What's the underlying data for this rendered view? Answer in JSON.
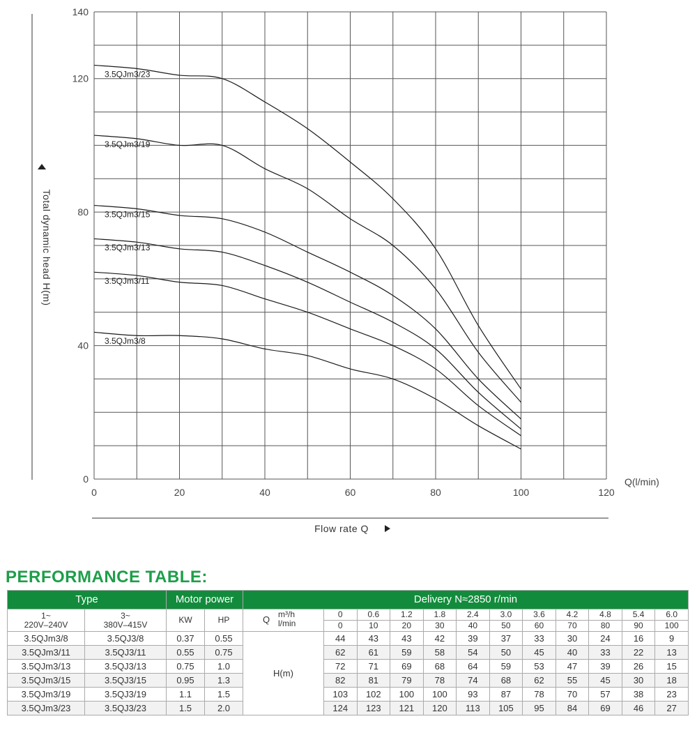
{
  "chart_data": {
    "type": "line",
    "xlabel": "Flow rate Q",
    "x_unit_label": "Q(l/min)",
    "ylabel": "Total dynamic head H(m)",
    "xlim": [
      0,
      120
    ],
    "ylim": [
      0,
      140
    ],
    "x_ticks": [
      0,
      20,
      40,
      60,
      80,
      100,
      120
    ],
    "y_ticks": [
      0,
      40,
      80,
      120,
      140
    ],
    "x_grid_step": 10,
    "y_grid_step": 10,
    "grid": true,
    "x": [
      0,
      10,
      20,
      30,
      40,
      50,
      60,
      70,
      80,
      90,
      100
    ],
    "series": [
      {
        "name": "3.5QJm3/23",
        "values": [
          124,
          123,
          121,
          120,
          113,
          105,
          95,
          84,
          69,
          46,
          27
        ]
      },
      {
        "name": "3.5QJm3/19",
        "values": [
          103,
          102,
          100,
          100,
          93,
          87,
          78,
          70,
          57,
          38,
          23
        ]
      },
      {
        "name": "3.5QJm3/15",
        "values": [
          82,
          81,
          79,
          78,
          74,
          68,
          62,
          55,
          45,
          30,
          18
        ]
      },
      {
        "name": "3.5QJm3/13",
        "values": [
          72,
          71,
          69,
          68,
          64,
          59,
          53,
          47,
          39,
          26,
          15
        ]
      },
      {
        "name": "3.5QJm3/11",
        "values": [
          62,
          61,
          59,
          58,
          54,
          50,
          45,
          40,
          33,
          22,
          13
        ]
      },
      {
        "name": "3.5QJm3/8",
        "values": [
          44,
          43,
          43,
          42,
          39,
          37,
          33,
          30,
          24,
          16,
          9
        ]
      }
    ]
  },
  "table": {
    "title": "PERFORMANCE TABLE:",
    "header": {
      "type": "Type",
      "motor_power": "Motor power",
      "delivery": "Delivery  N≈2850 r/min"
    },
    "subheader": {
      "single_phase": "1~",
      "single_voltage": "220V–240V",
      "three_phase": "3~",
      "three_voltage": "380V–415V",
      "kw": "KW",
      "hp": "HP",
      "q_symbol": "Q",
      "unit_m3h": "m³/h",
      "unit_lmin": "l/min",
      "m3h": [
        "0",
        "0.6",
        "1.2",
        "1.8",
        "2.4",
        "3.0",
        "3.6",
        "4.2",
        "4.8",
        "5.4",
        "6.0"
      ],
      "lmin": [
        "0",
        "10",
        "20",
        "30",
        "40",
        "50",
        "60",
        "70",
        "80",
        "90",
        "100"
      ]
    },
    "h_label": "H(m)",
    "rows": [
      {
        "single": "3.5QJm3/8",
        "three": "3.5QJ3/8",
        "kw": "0.37",
        "hp": "0.55",
        "h": [
          "44",
          "43",
          "43",
          "42",
          "39",
          "37",
          "33",
          "30",
          "24",
          "16",
          "9"
        ]
      },
      {
        "single": "3.5QJm3/11",
        "three": "3.5QJ3/11",
        "kw": "0.55",
        "hp": "0.75",
        "h": [
          "62",
          "61",
          "59",
          "58",
          "54",
          "50",
          "45",
          "40",
          "33",
          "22",
          "13"
        ]
      },
      {
        "single": "3.5QJm3/13",
        "three": "3.5QJ3/13",
        "kw": "0.75",
        "hp": "1.0",
        "h": [
          "72",
          "71",
          "69",
          "68",
          "64",
          "59",
          "53",
          "47",
          "39",
          "26",
          "15"
        ]
      },
      {
        "single": "3.5QJm3/15",
        "three": "3.5QJ3/15",
        "kw": "0.95",
        "hp": "1.3",
        "h": [
          "82",
          "81",
          "79",
          "78",
          "74",
          "68",
          "62",
          "55",
          "45",
          "30",
          "18"
        ]
      },
      {
        "single": "3.5QJm3/19",
        "three": "3.5QJ3/19",
        "kw": "1.1",
        "hp": "1.5",
        "h": [
          "103",
          "102",
          "100",
          "100",
          "93",
          "87",
          "78",
          "70",
          "57",
          "38",
          "23"
        ]
      },
      {
        "single": "3.5QJm3/23",
        "three": "3.5QJ3/23",
        "kw": "1.5",
        "hp": "2.0",
        "h": [
          "124",
          "123",
          "121",
          "120",
          "113",
          "105",
          "95",
          "84",
          "69",
          "46",
          "27"
        ]
      }
    ]
  }
}
